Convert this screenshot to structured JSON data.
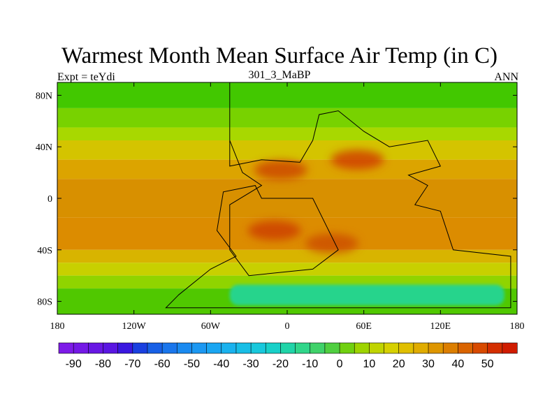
{
  "title": "Warmest Month Mean Surface Air Temp (in C)",
  "subtitle_left": "Expt = teYdi",
  "subtitle_center": "301_3_MaBP",
  "subtitle_right": "ANN",
  "map": {
    "projection": "cylindrical equidistant",
    "lon_range": [
      -180,
      180
    ],
    "lat_range": [
      -90,
      90
    ],
    "x_ticks": [
      {
        "value": -180,
        "label": "180"
      },
      {
        "value": -120,
        "label": "120W"
      },
      {
        "value": -60,
        "label": "60W"
      },
      {
        "value": 0,
        "label": "0"
      },
      {
        "value": 60,
        "label": "60E"
      },
      {
        "value": 120,
        "label": "120E"
      },
      {
        "value": 180,
        "label": "180"
      }
    ],
    "y_ticks": [
      {
        "value": 80,
        "label": "80N"
      },
      {
        "value": 40,
        "label": "40N"
      },
      {
        "value": 0,
        "label": "0"
      },
      {
        "value": -40,
        "label": "40S"
      },
      {
        "value": -80,
        "label": "80S"
      }
    ],
    "zonal_bands": [
      {
        "lat": [
          70,
          90
        ],
        "color": "#42c800"
      },
      {
        "lat": [
          55,
          70
        ],
        "color": "#78d200"
      },
      {
        "lat": [
          45,
          55
        ],
        "color": "#a8d800"
      },
      {
        "lat": [
          30,
          45
        ],
        "color": "#d4c400"
      },
      {
        "lat": [
          15,
          30
        ],
        "color": "#dca400"
      },
      {
        "lat": [
          -15,
          15
        ],
        "color": "#d89000"
      },
      {
        "lat": [
          -40,
          -15
        ],
        "color": "#dc8c00"
      },
      {
        "lat": [
          -50,
          -40
        ],
        "color": "#d8b400"
      },
      {
        "lat": [
          -60,
          -50
        ],
        "color": "#c8d000"
      },
      {
        "lat": [
          -70,
          -60
        ],
        "color": "#90d400"
      },
      {
        "lat": [
          -90,
          -70
        ],
        "color": "#50c800"
      }
    ],
    "hot_spots": [
      {
        "name": "northern-hot-spot",
        "lon": 55,
        "lat": 30,
        "color": "#d04000"
      },
      {
        "name": "central-hot-spot",
        "lon": -5,
        "lat": 22,
        "color": "#cc4800"
      },
      {
        "name": "southern-hot-spot",
        "lon": -10,
        "lat": -25,
        "color": "#cc4000"
      },
      {
        "name": "south-east-hot-spot",
        "lon": 35,
        "lat": -35,
        "color": "#cc5000"
      }
    ],
    "cold_region": {
      "lon": [
        -45,
        170
      ],
      "lat": [
        -83,
        -67
      ],
      "color": "#28d48c"
    },
    "continent_outline": [
      [
        -45,
        90
      ],
      [
        -45,
        25
      ],
      [
        -20,
        30
      ],
      [
        10,
        28
      ],
      [
        20,
        45
      ],
      [
        25,
        65
      ],
      [
        40,
        68
      ],
      [
        60,
        52
      ],
      [
        80,
        40
      ],
      [
        110,
        45
      ],
      [
        120,
        25
      ],
      [
        95,
        18
      ],
      [
        110,
        10
      ],
      [
        100,
        -5
      ],
      [
        120,
        -10
      ],
      [
        130,
        -40
      ],
      [
        175,
        -45
      ],
      [
        175,
        -85
      ],
      [
        -95,
        -85
      ],
      [
        -85,
        -75
      ],
      [
        -60,
        -55
      ],
      [
        -40,
        -45
      ],
      [
        -55,
        -25
      ],
      [
        -50,
        5
      ],
      [
        -25,
        10
      ],
      [
        -20,
        0
      ],
      [
        20,
        0
      ],
      [
        40,
        -40
      ],
      [
        20,
        -55
      ],
      [
        -30,
        -60
      ],
      [
        -45,
        -40
      ],
      [
        -45,
        -5
      ],
      [
        -20,
        10
      ],
      [
        -35,
        20
      ],
      [
        -45,
        45
      ]
    ]
  },
  "colorbar": {
    "labels": [
      "-90",
      "-80",
      "-70",
      "-60",
      "-50",
      "-40",
      "-30",
      "-20",
      "-10",
      "0",
      "10",
      "20",
      "30",
      "40",
      "50"
    ],
    "colors": [
      "#7d1be8",
      "#7419e6",
      "#6817e4",
      "#5a16e2",
      "#3a18e0",
      "#1a40e0",
      "#1860e6",
      "#1a76ec",
      "#1a8af0",
      "#1c98f2",
      "#1aa6f2",
      "#1ab2ee",
      "#18bee6",
      "#18c8dc",
      "#18d0c8",
      "#20d4a8",
      "#30d68a",
      "#40d26a",
      "#50cf40",
      "#70d010",
      "#9ed400",
      "#c0d400",
      "#d6d000",
      "#e0bf00",
      "#e0ac00",
      "#de9600",
      "#dc7e00",
      "#da6400",
      "#d84a00",
      "#d42e00",
      "#d01c00"
    ]
  }
}
